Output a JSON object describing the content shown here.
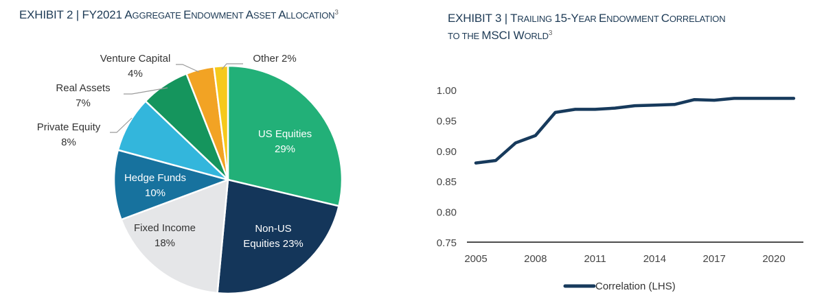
{
  "exhibit2": {
    "title_prefix": "EXHIBIT 2 | FY2021 ",
    "title_words": [
      {
        "cap": "A",
        "rest": "GGREGATE "
      },
      {
        "cap": "E",
        "rest": "NDOWMENT "
      },
      {
        "cap": "A",
        "rest": "SSET "
      },
      {
        "cap": "A",
        "rest": "LLOCATION"
      }
    ],
    "footnote": "3"
  },
  "exhibit3": {
    "title_line1_prefix": "EXHIBIT 3 | ",
    "title_line1_words": [
      {
        "cap": "T",
        "rest": "RAILING "
      },
      {
        "cap": "15-Y",
        "rest": "EAR "
      },
      {
        "cap": "E",
        "rest": "NDOWMENT "
      },
      {
        "cap": "C",
        "rest": "ORRELATION"
      }
    ],
    "title_line2_words": [
      {
        "cap": "",
        "rest": "TO THE "
      },
      {
        "cap": "MSCI W",
        "rest": "ORLD"
      }
    ],
    "footnote": "3"
  },
  "chart_data": [
    {
      "type": "pie",
      "title": "FY2021 Aggregate Endowment Asset Allocation",
      "start": "12 o'clock",
      "direction": "clockwise",
      "slices": [
        {
          "label": "US Equities",
          "value": 29,
          "display": "29%",
          "color": "#22b078",
          "label_position": "inside",
          "label_color": "#ffffff"
        },
        {
          "label": "Non-US Equities",
          "value": 23,
          "display": "23%",
          "color": "#14365a",
          "label_position": "inside",
          "label_color": "#ffffff"
        },
        {
          "label": "Fixed Income",
          "value": 18,
          "display": "18%",
          "color": "#e5e6e8",
          "label_position": "inside",
          "label_color": "#333333"
        },
        {
          "label": "Hedge Funds",
          "value": 10,
          "display": "10%",
          "color": "#17729e",
          "label_position": "inside",
          "label_color": "#ffffff"
        },
        {
          "label": "Private Equity",
          "value": 8,
          "display": "8%",
          "color": "#33b6dc",
          "label_position": "outside",
          "label_color": "#333333"
        },
        {
          "label": "Real Assets",
          "value": 7,
          "display": "7%",
          "color": "#15955d",
          "label_position": "outside",
          "label_color": "#333333"
        },
        {
          "label": "Venture Capital",
          "value": 4,
          "display": "4%",
          "color": "#f2a324",
          "label_position": "outside",
          "label_color": "#333333"
        },
        {
          "label": "Other",
          "value": 2,
          "display": "2%",
          "color": "#f6c91b",
          "label_position": "outside",
          "label_color": "#333333"
        }
      ]
    },
    {
      "type": "line",
      "title": "Trailing 15-Year Endowment Correlation to the MSCI World",
      "xlabel": "",
      "ylabel": "",
      "ylim": [
        0.75,
        1.0
      ],
      "yticks": [
        "0.75",
        "0.80",
        "0.85",
        "0.90",
        "0.95",
        "1.00"
      ],
      "xlim": [
        2005,
        2021
      ],
      "xticks": [
        "2005",
        "2008",
        "2011",
        "2014",
        "2017",
        "2020"
      ],
      "grid": false,
      "legend": "bottom-center",
      "series": [
        {
          "name": "Correlation (LHS)",
          "color": "#173a5c",
          "x": [
            2005,
            2006,
            2007,
            2008,
            2009,
            2010,
            2011,
            2012,
            2013,
            2014,
            2015,
            2016,
            2017,
            2018,
            2019,
            2020,
            2021
          ],
          "values": [
            0.88,
            0.884,
            0.913,
            0.925,
            0.963,
            0.968,
            0.968,
            0.97,
            0.974,
            0.975,
            0.976,
            0.984,
            0.983,
            0.986,
            0.986,
            0.986,
            0.986
          ]
        }
      ]
    }
  ]
}
